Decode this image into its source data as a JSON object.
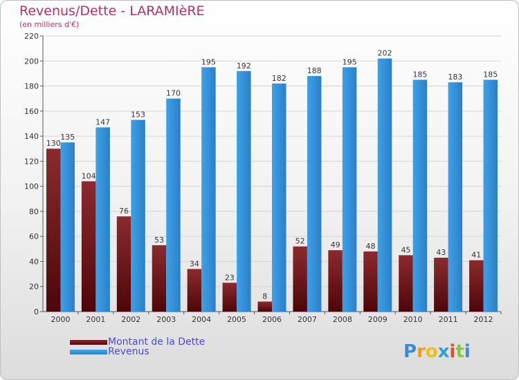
{
  "title": "Revenus/Dette - LARAMIèRE",
  "subtitle": "(en milliers d'€)",
  "logo_text": "Proxiti",
  "colors": {
    "dette": "#6b0f12",
    "revenus": "#2f8fd8",
    "title": "#b2306a",
    "legend_text": "#4a4ae0"
  },
  "chart_data": {
    "type": "bar",
    "title": "Revenus/Dette - LARAMIèRE",
    "subtitle": "(en milliers d'€)",
    "xlabel": "",
    "ylabel": "",
    "categories": [
      "2000",
      "2001",
      "2002",
      "2003",
      "2004",
      "2005",
      "2006",
      "2007",
      "2008",
      "2009",
      "2010",
      "2011",
      "2012"
    ],
    "series": [
      {
        "name": "Montant de la Dette",
        "values": [
          130,
          104,
          76,
          53,
          34,
          23,
          8,
          52,
          49,
          48,
          45,
          43,
          41
        ]
      },
      {
        "name": "Revenus",
        "values": [
          135,
          147,
          153,
          170,
          195,
          192,
          182,
          188,
          195,
          202,
          185,
          183,
          185
        ]
      }
    ],
    "ylim": [
      0,
      220
    ],
    "yticks": [
      0,
      20,
      40,
      60,
      80,
      100,
      120,
      140,
      160,
      180,
      200,
      220
    ],
    "grid": true,
    "legend": "bottom-left"
  }
}
